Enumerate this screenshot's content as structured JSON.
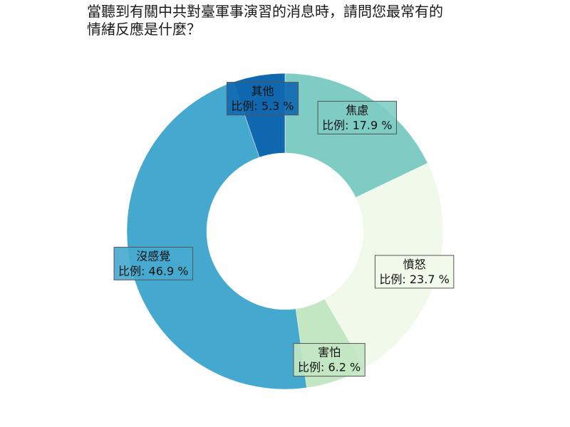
{
  "title_lines": [
    "當聽到有關中共對臺軍事演習的消息時，請問您最常有的",
    "情緒反應是什麼？"
  ],
  "chart_data": {
    "type": "pie",
    "title": "當聽到有關中共對臺軍事演習的消息時，請問您最常有的情緒反應是什麼？",
    "donut": true,
    "value_prefix": "比例: ",
    "value_suffix": " %",
    "slices": [
      {
        "label": "焦慮",
        "value": 17.9,
        "color": "#7fccc4"
      },
      {
        "label": "憤怒",
        "value": 23.7,
        "color": "#f1f9ea"
      },
      {
        "label": "害怕",
        "value": 6.2,
        "color": "#c3e7c3"
      },
      {
        "label": "沒感覺",
        "value": 46.9,
        "color": "#45a8cf"
      },
      {
        "label": "其他",
        "value": 5.3,
        "color": "#0f68b0"
      }
    ]
  }
}
